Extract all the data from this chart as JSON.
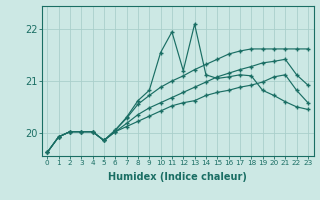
{
  "xlabel": "Humidex (Indice chaleur)",
  "ylabel": "",
  "xlim": [
    -0.5,
    23.5
  ],
  "ylim": [
    19.55,
    22.45
  ],
  "yticks": [
    20,
    21,
    22
  ],
  "xticks": [
    0,
    1,
    2,
    3,
    4,
    5,
    6,
    7,
    8,
    9,
    10,
    11,
    12,
    13,
    14,
    15,
    16,
    17,
    18,
    19,
    20,
    21,
    22,
    23
  ],
  "bg_color": "#cce8e4",
  "grid_color": "#aacfcb",
  "line_color": "#1a6e64",
  "lines": [
    [
      19.62,
      19.92,
      20.02,
      20.02,
      20.02,
      19.85,
      20.05,
      20.3,
      20.62,
      20.82,
      21.55,
      21.95,
      21.2,
      22.1,
      21.12,
      21.05,
      21.08,
      21.12,
      21.1,
      20.82,
      20.72,
      20.6,
      20.5,
      20.45
    ],
    [
      19.62,
      19.92,
      20.02,
      20.02,
      20.02,
      19.85,
      20.05,
      20.28,
      20.55,
      20.72,
      20.88,
      21.0,
      21.1,
      21.22,
      21.32,
      21.42,
      21.52,
      21.58,
      21.62,
      21.62,
      21.62,
      21.62,
      21.62,
      21.62
    ],
    [
      19.62,
      19.92,
      20.02,
      20.02,
      20.02,
      19.85,
      20.02,
      20.18,
      20.35,
      20.48,
      20.58,
      20.68,
      20.78,
      20.88,
      20.98,
      21.08,
      21.15,
      21.22,
      21.28,
      21.35,
      21.38,
      21.42,
      21.12,
      20.92
    ],
    [
      19.62,
      19.92,
      20.02,
      20.02,
      20.02,
      19.85,
      20.02,
      20.12,
      20.22,
      20.32,
      20.42,
      20.52,
      20.58,
      20.62,
      20.72,
      20.78,
      20.82,
      20.88,
      20.92,
      20.98,
      21.08,
      21.12,
      20.82,
      20.58
    ]
  ]
}
